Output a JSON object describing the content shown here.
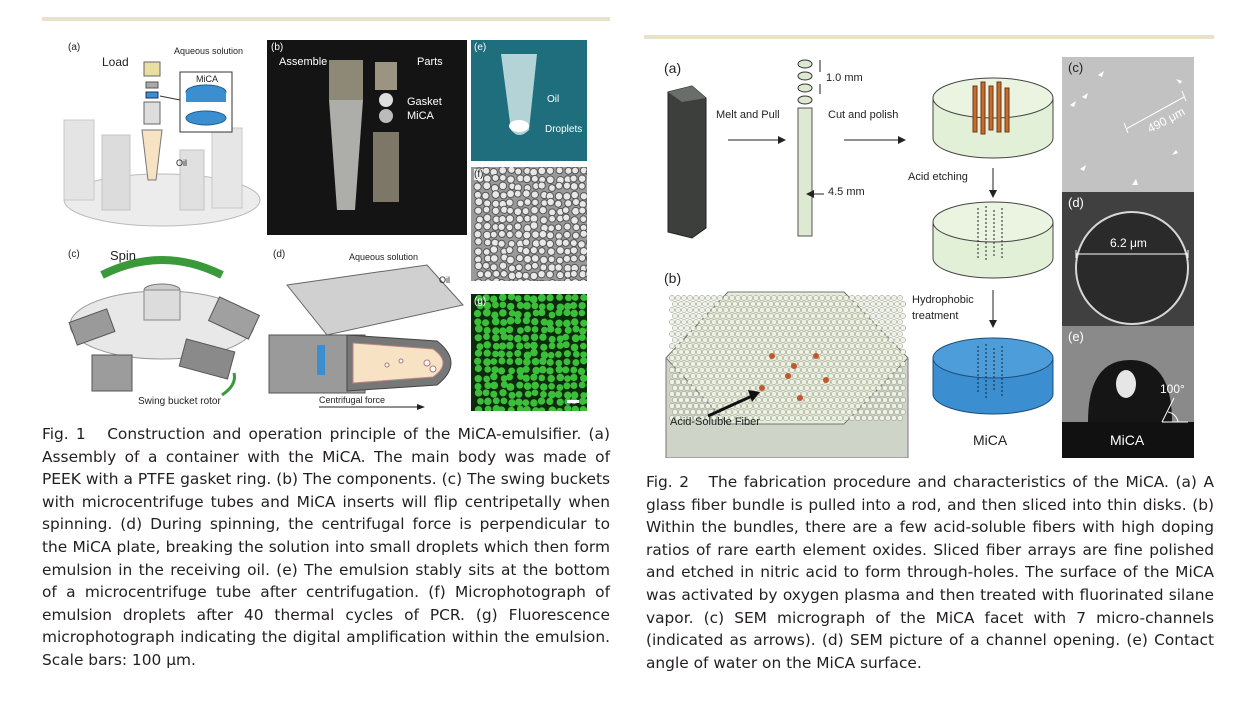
{
  "figure1": {
    "panels": {
      "a": {
        "letter": "(a)",
        "title": "Load",
        "aqueous": "Aqueous solution",
        "mica": "MiCA",
        "oil": "Oil"
      },
      "b": {
        "letter": "(b)",
        "assemble": "Assemble",
        "parts": "Parts",
        "gasket": "Gasket",
        "mica": "MiCA"
      },
      "c": {
        "letter": "(c)",
        "spin": "Spin",
        "rotor": "Swing bucket rotor"
      },
      "d": {
        "letter": "(d)",
        "aqueous": "Aqueous solution",
        "oil": "Oil",
        "force": "Centrifugal force"
      },
      "e": {
        "letter": "(e)",
        "oil": "Oil",
        "droplets": "Droplets"
      },
      "f": {
        "letter": "(f)"
      },
      "g": {
        "letter": "(g)"
      }
    },
    "caption": {
      "label": "Fig. 1",
      "text": "Construction and operation principle of the MiCA-emulsifier. (a) Assembly of a container with the MiCA. The main body was made of PEEK with a PTFE gasket ring. (b) The components. (c) The swing buckets with microcentrifuge tubes and MiCA inserts will flip centripetally when spinning. (d) During spinning, the centrifugal force is perpendicular to the MiCA plate, breaking the solution into small droplets which then form emulsion in the receiving oil. (e) The emulsion stably sits at the bottom of a microcentrifuge tube after centrifugation. (f) Microphotograph of emulsion droplets after 40 thermal cycles of PCR. (g) Fluorescence microphotograph indicating the digital amplification within the emulsion. Scale bars: 100 μm."
    }
  },
  "figure2": {
    "panels": {
      "a": {
        "letter": "(a)",
        "melt": "Melt and Pull",
        "cut": "Cut and polish",
        "dim1": "1.0 mm",
        "dim2": "4.5 mm",
        "acid": "Acid etching",
        "hydro1": "Hydrophobic",
        "hydro2": "treatment",
        "mica": "MiCA"
      },
      "b": {
        "letter": "(b)",
        "fiber": "Acid-Soluble Fiber"
      },
      "c": {
        "letter": "(c)",
        "scale": "490 μm"
      },
      "d": {
        "letter": "(d)",
        "scale": "6.2 μm"
      },
      "e": {
        "letter": "(e)",
        "angle": "100°",
        "mica": "MiCA"
      }
    },
    "caption": {
      "label": "Fig. 2",
      "text": "The fabrication procedure and characteristics of the MiCA. (a) A glass fiber bundle is pulled into a rod, and then sliced into thin disks. (b) Within the bundles, there are a few acid-soluble fibers with high doping ratios of rare earth element oxides. Sliced fiber arrays are fine polished and etched in nitric acid to form through-holes. The surface of the MiCA was activated by oxygen plasma and then treated with fluorinated silane vapor. (c) SEM micrograph of the MiCA facet with 7 micro-channels (indicated as arrows). (d) SEM picture of a channel opening. (e) Contact angle of water on the MiCA surface."
    }
  },
  "colors": {
    "rule": "#e8e3c8",
    "mica_blue": "#3b8fd0",
    "disk_green": "#e3f0d8",
    "fluor_green": "#3bbf3b"
  }
}
